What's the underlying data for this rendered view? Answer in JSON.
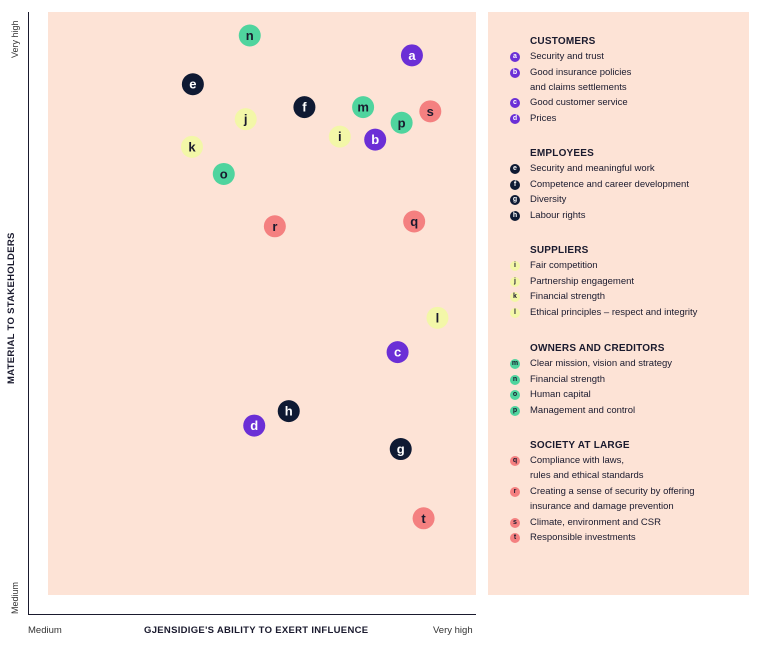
{
  "chart_data": {
    "type": "scatter",
    "xlabel": "GJENSIDIGE'S ABILITY TO EXERT INFLUENCE",
    "ylabel": "MATERIAL TO STAKEHOLDERS",
    "x_ticks": [
      "Medium",
      "Very high"
    ],
    "y_ticks": [
      "Medium",
      "Very high"
    ],
    "xlim": [
      0,
      100
    ],
    "ylim": [
      0,
      100
    ],
    "colors": {
      "customers": "#6b2fd6",
      "employees": "#0f1a33",
      "suppliers": "#f3f7a8",
      "owners": "#4fd49e",
      "society": "#f48080"
    },
    "points": [
      {
        "id": "a",
        "group": "customers",
        "x": 85.7,
        "y": 92.8
      },
      {
        "id": "b",
        "group": "customers",
        "x": 77.5,
        "y": 78.8
      },
      {
        "id": "c",
        "group": "customers",
        "x": 82.5,
        "y": 43.5
      },
      {
        "id": "d",
        "group": "customers",
        "x": 50.5,
        "y": 31.3
      },
      {
        "id": "e",
        "group": "employees",
        "x": 36.8,
        "y": 88.0
      },
      {
        "id": "f",
        "group": "employees",
        "x": 61.7,
        "y": 84.2
      },
      {
        "id": "g",
        "group": "employees",
        "x": 83.2,
        "y": 27.4
      },
      {
        "id": "h",
        "group": "employees",
        "x": 58.2,
        "y": 33.7
      },
      {
        "id": "i",
        "group": "suppliers",
        "x": 69.6,
        "y": 79.3
      },
      {
        "id": "j",
        "group": "suppliers",
        "x": 48.6,
        "y": 82.2
      },
      {
        "id": "k",
        "group": "suppliers",
        "x": 36.6,
        "y": 77.6
      },
      {
        "id": "l",
        "group": "suppliers",
        "x": 91.4,
        "y": 49.2
      },
      {
        "id": "m",
        "group": "owners",
        "x": 74.8,
        "y": 84.2
      },
      {
        "id": "n",
        "group": "owners",
        "x": 49.5,
        "y": 96.1
      },
      {
        "id": "o",
        "group": "owners",
        "x": 43.7,
        "y": 73.1
      },
      {
        "id": "p",
        "group": "owners",
        "x": 83.4,
        "y": 81.6
      },
      {
        "id": "q",
        "group": "society",
        "x": 86.2,
        "y": 65.2
      },
      {
        "id": "r",
        "group": "society",
        "x": 55.1,
        "y": 64.4
      },
      {
        "id": "s",
        "group": "society",
        "x": 89.8,
        "y": 83.5
      },
      {
        "id": "t",
        "group": "society",
        "x": 88.3,
        "y": 15.9
      }
    ],
    "legend": [
      {
        "title": "CUSTOMERS",
        "group": "customers",
        "items": [
          {
            "id": "a",
            "label": "Security and trust"
          },
          {
            "id": "b",
            "label": "Good insurance policies",
            "label2": "and claims settlements"
          },
          {
            "id": "c",
            "label": "Good customer service"
          },
          {
            "id": "d",
            "label": "Prices"
          }
        ]
      },
      {
        "title": "EMPLOYEES",
        "group": "employees",
        "items": [
          {
            "id": "e",
            "label": "Security and meaningful work"
          },
          {
            "id": "f",
            "label": "Competence and career development"
          },
          {
            "id": "g",
            "label": "Diversity"
          },
          {
            "id": "h",
            "label": "Labour rights"
          }
        ]
      },
      {
        "title": "SUPPLIERS",
        "group": "suppliers",
        "items": [
          {
            "id": "i",
            "label": "Fair competition"
          },
          {
            "id": "j",
            "label": "Partnership engagement"
          },
          {
            "id": "k",
            "label": "Financial strength"
          },
          {
            "id": "l",
            "label": "Ethical principles – respect and integrity"
          }
        ]
      },
      {
        "title": "OWNERS AND CREDITORS",
        "group": "owners",
        "items": [
          {
            "id": "m",
            "label": "Clear mission, vision and strategy"
          },
          {
            "id": "n",
            "label": "Financial strength"
          },
          {
            "id": "o",
            "label": "Human capital"
          },
          {
            "id": "p",
            "label": "Management and control"
          }
        ]
      },
      {
        "title": "SOCIETY AT LARGE",
        "group": "society",
        "items": [
          {
            "id": "q",
            "label": "Compliance with laws,",
            "label2": "rules and ethical standards"
          },
          {
            "id": "r",
            "label": "Creating a sense of security by offering",
            "label2": "insurance and damage prevention"
          },
          {
            "id": "s",
            "label": "Climate, environment and CSR"
          },
          {
            "id": "t",
            "label": "Responsible investments"
          }
        ]
      }
    ]
  }
}
